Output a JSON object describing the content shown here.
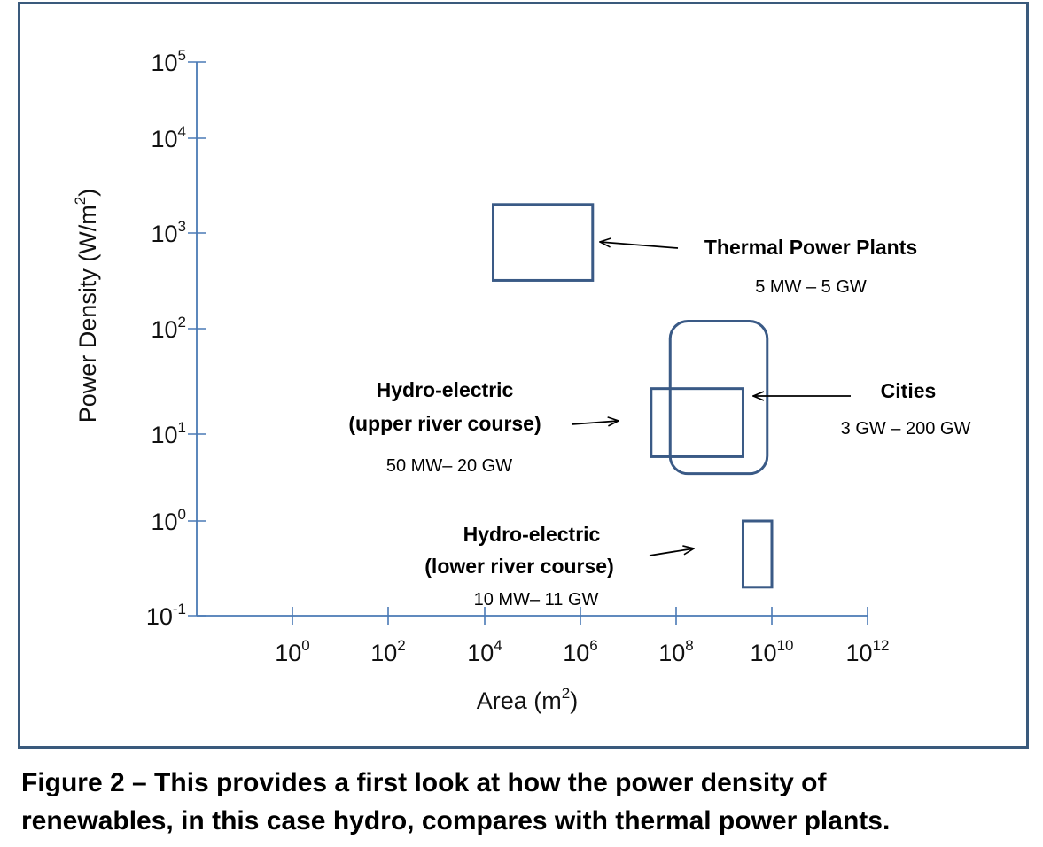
{
  "chart_data": {
    "type": "other",
    "xlabel_base": "Area (m",
    "xlabel_sup": "2",
    "xlabel_end": ")",
    "ylabel_base": "Power Density (W/m",
    "ylabel_sup": "2",
    "ylabel_end": ")",
    "x_scale": "log",
    "y_scale": "log",
    "xlim": [
      0.01,
      1000000000000.0
    ],
    "ylim": [
      0.1,
      100000
    ],
    "x_ticks": [
      {
        "base": "10",
        "exp": "0"
      },
      {
        "base": "10",
        "exp": "2"
      },
      {
        "base": "10",
        "exp": "4"
      },
      {
        "base": "10",
        "exp": "6"
      },
      {
        "base": "10",
        "exp": "8"
      },
      {
        "base": "10",
        "exp": "10"
      },
      {
        "base": "10",
        "exp": "12"
      }
    ],
    "y_ticks": [
      {
        "base": "10",
        "exp": "-1"
      },
      {
        "base": "10",
        "exp": "0"
      },
      {
        "base": "10",
        "exp": "1"
      },
      {
        "base": "10",
        "exp": "2"
      },
      {
        "base": "10",
        "exp": "3"
      },
      {
        "base": "10",
        "exp": "4"
      },
      {
        "base": "10",
        "exp": "5"
      }
    ],
    "regions": [
      {
        "label_lines": [
          "Thermal Power Plants"
        ],
        "range": "5 MW – 5 GW",
        "area_min": 15000,
        "area_max": 1800000,
        "density_min": 320,
        "density_max": 2000,
        "rounded": false
      },
      {
        "label_lines": [
          "Cities"
        ],
        "range": "3 GW – 200 GW",
        "area_min": 75000000,
        "area_max": 8000000000,
        "density_min": 3.5,
        "density_max": 120,
        "rounded": true
      },
      {
        "label_lines": [
          "Hydro-electric",
          "(upper river course)"
        ],
        "range": "50  MW– 20 GW",
        "area_min": 30000000,
        "area_max": 2500000000,
        "density_min": 5.5,
        "density_max": 27,
        "rounded": false
      },
      {
        "label_lines": [
          "Hydro-electric",
          "(lower river course)"
        ],
        "range": "10  MW– 11 GW",
        "area_min": 2500000000,
        "area_max": 10000000000,
        "density_min": 0.2,
        "density_max": 1.0,
        "rounded": false
      }
    ]
  },
  "caption": {
    "line1": "Figure 2 – This provides a first look at how the power density of",
    "line2": "renewables, in this case hydro, compares with thermal power plants."
  },
  "colors": {
    "frame": "#3a5a7c",
    "axis": "#4a7ab5",
    "region": "#3a5a86",
    "arrow": "#000000"
  }
}
